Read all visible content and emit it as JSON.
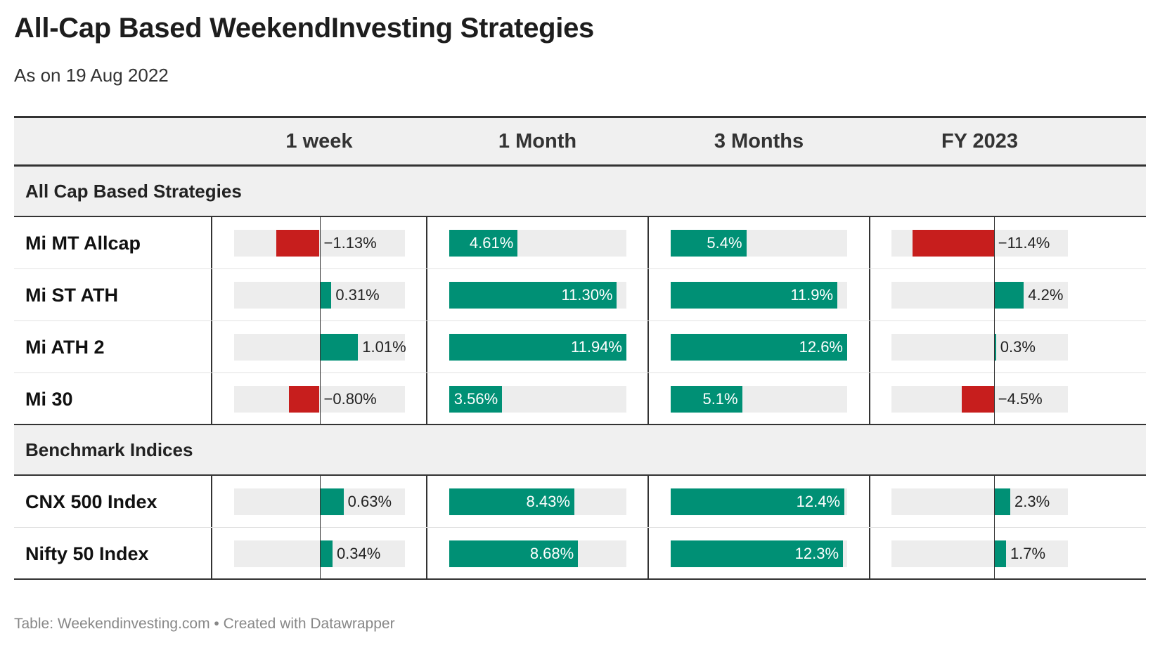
{
  "title": "All-Cap Based WeekendInvesting Strategies",
  "subtitle": "As on 19 Aug 2022",
  "footer": "Table: Weekendinvesting.com • Created with Datawrapper",
  "colors": {
    "positive": "#009075",
    "negative": "#c71e1d",
    "track": "#ededed",
    "header_bg": "#f0f0f0"
  },
  "chart_data": {
    "type": "table",
    "columns": [
      "1 week",
      "1 Month",
      "3 Months",
      "FY 2023"
    ],
    "groups": [
      {
        "label": "All Cap Based Strategies",
        "rows": [
          {
            "label": "Mi MT Allcap",
            "values": [
              -1.13,
              4.61,
              5.4,
              -11.4
            ],
            "display": [
              "−1.13%",
              "4.61%",
              "5.4%",
              "−11.4%"
            ]
          },
          {
            "label": "Mi ST ATH",
            "values": [
              0.31,
              11.3,
              11.9,
              4.2
            ],
            "display": [
              "0.31%",
              "11.30%",
              "11.9%",
              "4.2%"
            ]
          },
          {
            "label": "Mi ATH 2",
            "values": [
              1.01,
              11.94,
              12.6,
              0.3
            ],
            "display": [
              "1.01%",
              "11.94%",
              "12.6%",
              "0.3%"
            ]
          },
          {
            "label": "Mi 30",
            "values": [
              -0.8,
              3.56,
              5.1,
              -4.5
            ],
            "display": [
              "−0.80%",
              "3.56%",
              "5.1%",
              "−4.5%"
            ]
          }
        ]
      },
      {
        "label": "Benchmark Indices",
        "rows": [
          {
            "label": "CNX 500 Index",
            "values": [
              0.63,
              8.43,
              12.4,
              2.3
            ],
            "display": [
              "0.63%",
              "8.43%",
              "12.4%",
              "2.3%"
            ]
          },
          {
            "label": "Nifty 50 Index",
            "values": [
              0.34,
              8.68,
              12.3,
              1.7
            ],
            "display": [
              "0.34%",
              "8.68%",
              "12.3%",
              "1.7%"
            ]
          }
        ]
      }
    ],
    "column_ranges": [
      [
        -2.24,
        2.24
      ],
      [
        0,
        11.94
      ],
      [
        0,
        12.6
      ],
      [
        -14.4,
        10.4
      ]
    ]
  }
}
